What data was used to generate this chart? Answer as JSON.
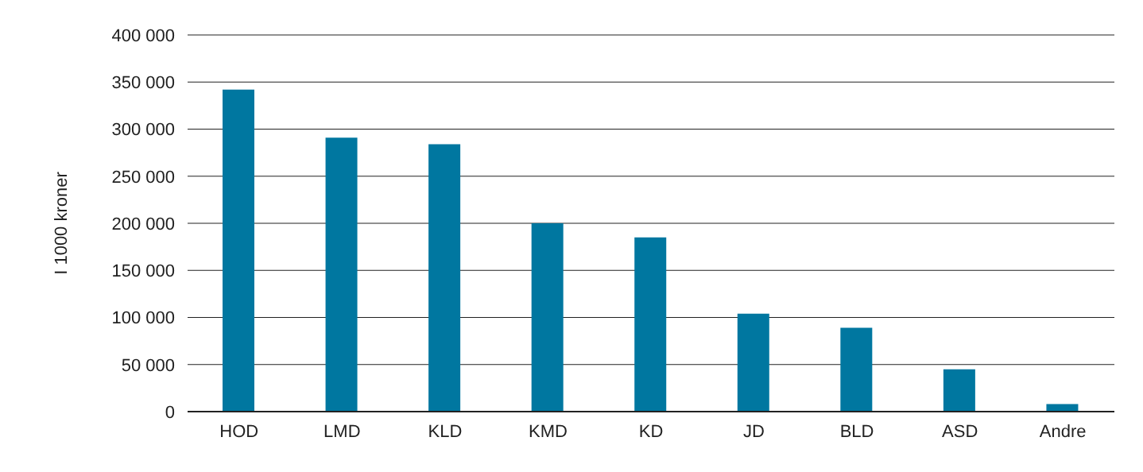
{
  "chart_data": {
    "type": "bar",
    "ylabel": "I 1000 kroner",
    "categories": [
      "HOD",
      "LMD",
      "KLD",
      "KMD",
      "KD",
      "JD",
      "BLD",
      "ASD",
      "Andre"
    ],
    "values": [
      342000,
      291000,
      284000,
      200000,
      185000,
      104000,
      89000,
      45000,
      8000
    ],
    "color": "#0077a0",
    "ylim": [
      0,
      400000
    ],
    "yticks": [
      {
        "value": 0,
        "label": "0"
      },
      {
        "value": 50000,
        "label": "50 000"
      },
      {
        "value": 100000,
        "label": "100 000"
      },
      {
        "value": 150000,
        "label": "150 000"
      },
      {
        "value": 200000,
        "label": "200 000"
      },
      {
        "value": 250000,
        "label": "250 000"
      },
      {
        "value": 300000,
        "label": "300 000"
      },
      {
        "value": 350000,
        "label": "350 000"
      },
      {
        "value": 400000,
        "label": "400 000"
      }
    ],
    "grid": "y"
  }
}
